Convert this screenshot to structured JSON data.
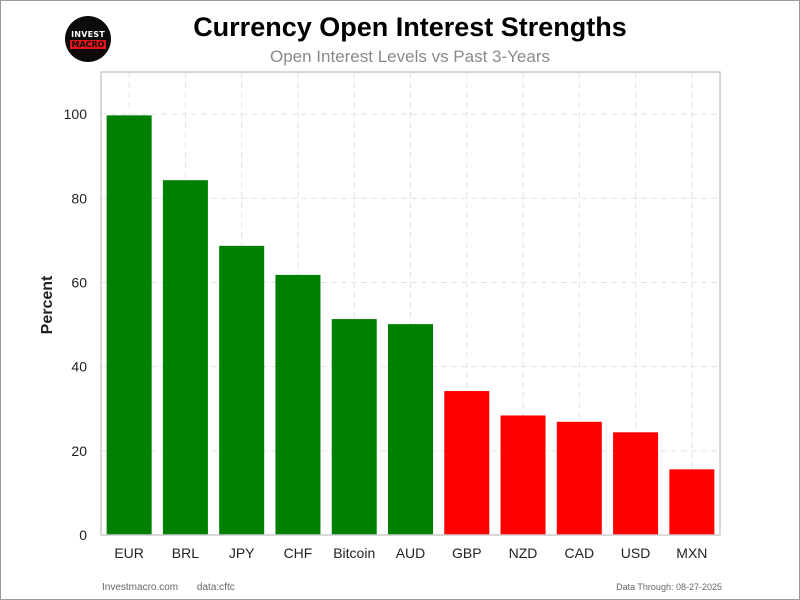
{
  "logo": {
    "line1": "INVEST",
    "line2": "MACRO"
  },
  "chart_data": {
    "type": "bar",
    "title": "Currency Open Interest Strengths",
    "subtitle": "Open Interest Levels vs Past 3-Years",
    "xlabel": "",
    "ylabel": "Percent",
    "ylim": [
      0,
      110
    ],
    "yticks": [
      0,
      20,
      40,
      60,
      80,
      100
    ],
    "grid": true,
    "categories": [
      "EUR",
      "BRL",
      "JPY",
      "CHF",
      "Bitcoin",
      "AUD",
      "GBP",
      "NZD",
      "CAD",
      "USD",
      "MXN"
    ],
    "values": [
      99.7,
      84.3,
      68.7,
      61.8,
      51.3,
      50.1,
      34.2,
      28.4,
      26.9,
      24.4,
      15.6
    ],
    "colors": [
      "#008000",
      "#008000",
      "#008000",
      "#008000",
      "#008000",
      "#008000",
      "#ff0000",
      "#ff0000",
      "#ff0000",
      "#ff0000",
      "#ff0000"
    ]
  },
  "footer": {
    "site": "Investmacro.com",
    "source": "data:cftc",
    "date": "Data Through: 08-27-2025"
  }
}
